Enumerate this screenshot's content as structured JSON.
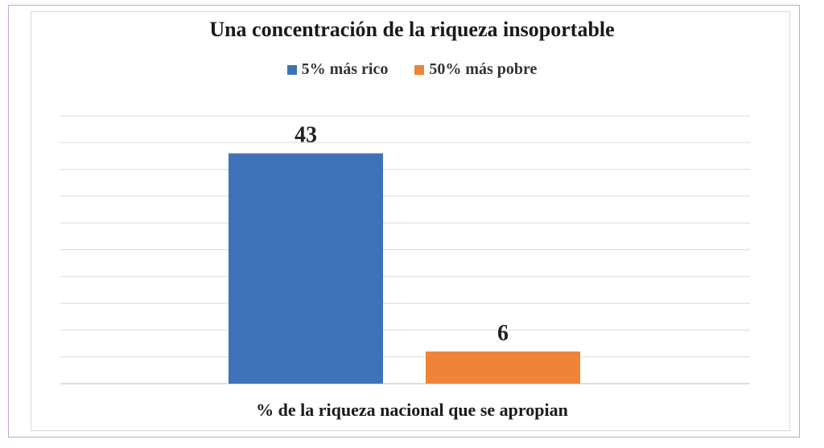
{
  "chart_data": {
    "type": "bar",
    "title": "Una concentración de la riqueza insoportable",
    "xlabel": "% de la riqueza nacional que se apropian",
    "ylabel": "",
    "ylim": [
      0,
      50
    ],
    "grid": true,
    "legend_position": "top",
    "series": [
      {
        "name": "5% más rico",
        "values": [
          43
        ],
        "color": "#3f72b9",
        "label": "43"
      },
      {
        "name": "50% más pobre",
        "values": [
          6
        ],
        "color": "#ef8438",
        "label": "6"
      }
    ]
  }
}
